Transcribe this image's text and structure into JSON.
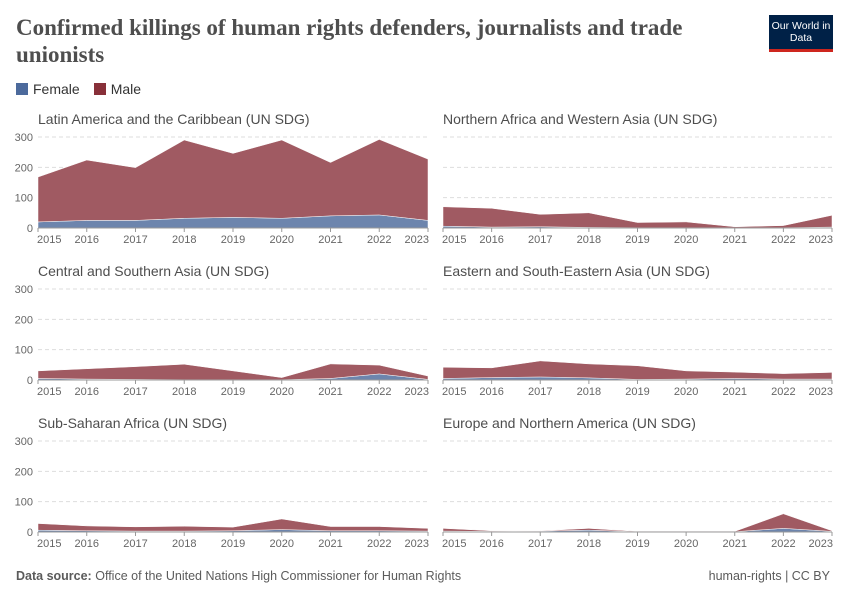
{
  "header": {
    "title": "Confirmed killings of human rights defenders, journalists and trade unionists",
    "logo": "Our World in Data"
  },
  "legend": [
    {
      "label": "Female",
      "color": "#4C6A9C"
    },
    {
      "label": "Male",
      "color": "#883039"
    }
  ],
  "footer": {
    "source_label": "Data source:",
    "source": "Office of the United Nations High Commissioner for Human Rights",
    "license": "human-rights | CC BY"
  },
  "chart_data": [
    {
      "type": "area",
      "stacked": true,
      "title": "Latin America and the Caribbean (UN SDG)",
      "x": [
        2015,
        2016,
        2017,
        2018,
        2019,
        2020,
        2021,
        2022,
        2023
      ],
      "ylim": [
        0,
        300
      ],
      "yticks": [
        0,
        100,
        200,
        300
      ],
      "grid": true,
      "series": [
        {
          "name": "Female",
          "values": [
            20,
            25,
            25,
            32,
            35,
            32,
            40,
            43,
            25
          ]
        },
        {
          "name": "Male",
          "values": [
            148,
            199,
            174,
            258,
            211,
            258,
            176,
            249,
            202
          ]
        }
      ]
    },
    {
      "type": "area",
      "stacked": true,
      "title": "Northern Africa and Western Asia (UN SDG)",
      "x": [
        2015,
        2016,
        2017,
        2018,
        2019,
        2020,
        2021,
        2022,
        2023
      ],
      "ylim": [
        0,
        300
      ],
      "yticks": [
        0,
        100,
        200,
        300
      ],
      "grid": true,
      "series": [
        {
          "name": "Female",
          "values": [
            6,
            3,
            4,
            2,
            1,
            1,
            1,
            1,
            3
          ]
        },
        {
          "name": "Male",
          "values": [
            64,
            62,
            41,
            48,
            17,
            19,
            3,
            7,
            39
          ]
        }
      ]
    },
    {
      "type": "area",
      "stacked": true,
      "title": "Central and Southern Asia (UN SDG)",
      "x": [
        2015,
        2016,
        2017,
        2018,
        2019,
        2020,
        2021,
        2022,
        2023
      ],
      "ylim": [
        0,
        300
      ],
      "yticks": [
        0,
        100,
        200,
        300
      ],
      "grid": true,
      "series": [
        {
          "name": "Female",
          "values": [
            5,
            3,
            2,
            1,
            1,
            1,
            5,
            20,
            2
          ]
        },
        {
          "name": "Male",
          "values": [
            25,
            34,
            42,
            51,
            29,
            7,
            48,
            29,
            11
          ]
        }
      ]
    },
    {
      "type": "area",
      "stacked": true,
      "title": "Eastern and South-Eastern Asia (UN SDG)",
      "x": [
        2015,
        2016,
        2017,
        2018,
        2019,
        2020,
        2021,
        2022,
        2023
      ],
      "ylim": [
        0,
        300
      ],
      "yticks": [
        0,
        100,
        200,
        300
      ],
      "grid": true,
      "series": [
        {
          "name": "Female",
          "values": [
            5,
            8,
            10,
            7,
            2,
            3,
            5,
            3,
            3
          ]
        },
        {
          "name": "Male",
          "values": [
            37,
            32,
            53,
            46,
            45,
            27,
            21,
            18,
            22
          ]
        }
      ]
    },
    {
      "type": "area",
      "stacked": true,
      "title": "Sub-Saharan Africa (UN SDG)",
      "x": [
        2015,
        2016,
        2017,
        2018,
        2019,
        2020,
        2021,
        2022,
        2023
      ],
      "ylim": [
        0,
        300
      ],
      "yticks": [
        0,
        100,
        200,
        300
      ],
      "grid": true,
      "series": [
        {
          "name": "Female",
          "values": [
            6,
            4,
            3,
            3,
            4,
            8,
            4,
            4,
            3
          ]
        },
        {
          "name": "Male",
          "values": [
            22,
            16,
            14,
            16,
            12,
            35,
            14,
            14,
            9
          ]
        }
      ]
    },
    {
      "type": "area",
      "stacked": true,
      "title": "Europe and Northern America (UN SDG)",
      "x": [
        2015,
        2016,
        2017,
        2018,
        2019,
        2020,
        2021,
        2022,
        2023
      ],
      "ylim": [
        0,
        300
      ],
      "yticks": [
        0,
        100,
        200,
        300
      ],
      "grid": true,
      "series": [
        {
          "name": "Female",
          "values": [
            3,
            2,
            3,
            6,
            1,
            1,
            1,
            12,
            2
          ]
        },
        {
          "name": "Male",
          "values": [
            9,
            2,
            1,
            6,
            1,
            1,
            1,
            48,
            2
          ]
        }
      ]
    }
  ]
}
